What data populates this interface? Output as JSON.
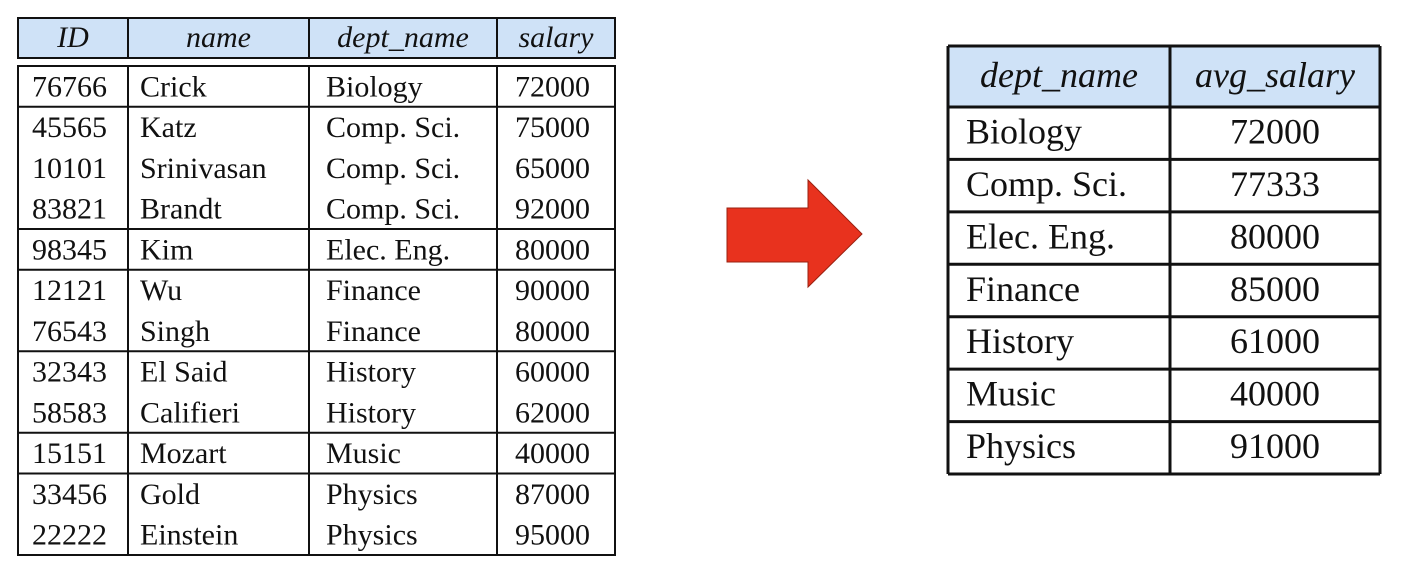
{
  "left_table": {
    "columns": [
      "ID",
      "name",
      "dept_name",
      "salary"
    ],
    "rows": [
      [
        76766,
        "Crick",
        "Biology",
        72000
      ],
      [
        45565,
        "Katz",
        "Comp. Sci.",
        75000
      ],
      [
        10101,
        "Srinivasan",
        "Comp. Sci.",
        65000
      ],
      [
        83821,
        "Brandt",
        "Comp. Sci.",
        92000
      ],
      [
        98345,
        "Kim",
        "Elec. Eng.",
        80000
      ],
      [
        12121,
        "Wu",
        "Finance",
        90000
      ],
      [
        76543,
        "Singh",
        "Finance",
        80000
      ],
      [
        32343,
        "El Said",
        "History",
        60000
      ],
      [
        58583,
        "Califieri",
        "History",
        62000
      ],
      [
        15151,
        "Mozart",
        "Music",
        40000
      ],
      [
        33456,
        "Gold",
        "Physics",
        87000
      ],
      [
        22222,
        "Einstein",
        "Physics",
        95000
      ]
    ]
  },
  "right_table": {
    "columns": [
      "dept_name",
      "avg_salary"
    ],
    "rows": [
      [
        "Biology",
        72000
      ],
      [
        "Comp. Sci.",
        77333
      ],
      [
        "Elec. Eng.",
        80000
      ],
      [
        "Finance",
        85000
      ],
      [
        "History",
        61000
      ],
      [
        "Music",
        40000
      ],
      [
        "Physics",
        91000
      ]
    ]
  }
}
